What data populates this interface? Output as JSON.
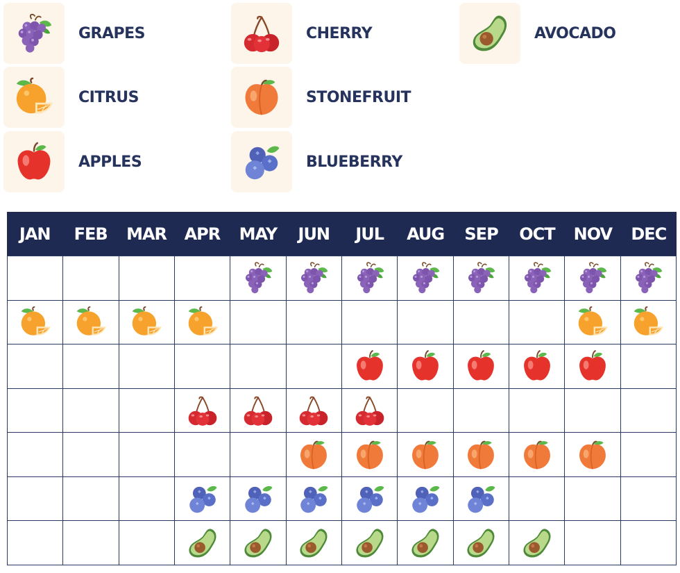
{
  "legend": [
    {
      "id": "grapes",
      "label": "GRAPES",
      "icon": "grapes-icon"
    },
    {
      "id": "cherry",
      "label": "CHERRY",
      "icon": "cherry-icon"
    },
    {
      "id": "avocado",
      "label": "AVOCADO",
      "icon": "avocado-icon"
    },
    {
      "id": "citrus",
      "label": "CITRUS",
      "icon": "citrus-icon"
    },
    {
      "id": "stonefruit",
      "label": "STONEFRUIT",
      "icon": "stonefruit-icon"
    },
    {
      "id": "apples",
      "label": "APPLES",
      "icon": "apple-icon"
    },
    {
      "id": "blueberry",
      "label": "BLUEBERRY",
      "icon": "blueberry-icon"
    }
  ],
  "months": [
    "JAN",
    "FEB",
    "MAR",
    "APR",
    "MAY",
    "JUN",
    "JUL",
    "AUG",
    "SEP",
    "OCT",
    "NOV",
    "DEC"
  ],
  "calendar_rows": [
    {
      "fruit": "grapes",
      "months": [
        0,
        0,
        0,
        0,
        1,
        1,
        1,
        1,
        1,
        1,
        1,
        1
      ]
    },
    {
      "fruit": "citrus",
      "months": [
        1,
        1,
        1,
        1,
        0,
        0,
        0,
        0,
        0,
        0,
        1,
        1
      ]
    },
    {
      "fruit": "apples",
      "months": [
        0,
        0,
        0,
        0,
        0,
        0,
        1,
        1,
        1,
        1,
        1,
        0
      ]
    },
    {
      "fruit": "cherry",
      "months": [
        0,
        0,
        0,
        1,
        1,
        1,
        1,
        0,
        0,
        0,
        0,
        0
      ]
    },
    {
      "fruit": "stonefruit",
      "months": [
        0,
        0,
        0,
        0,
        0,
        1,
        1,
        1,
        1,
        1,
        1,
        0
      ]
    },
    {
      "fruit": "blueberry",
      "months": [
        0,
        0,
        0,
        1,
        1,
        1,
        1,
        1,
        1,
        0,
        0,
        0
      ]
    },
    {
      "fruit": "avocado",
      "months": [
        0,
        0,
        0,
        1,
        1,
        1,
        1,
        1,
        1,
        1,
        0,
        0
      ]
    }
  ],
  "colors": {
    "header_bg": "#1f2a52",
    "grid_line": "#2b3763",
    "label_text": "#26335c",
    "tile_bg": "#fdf5ea"
  }
}
